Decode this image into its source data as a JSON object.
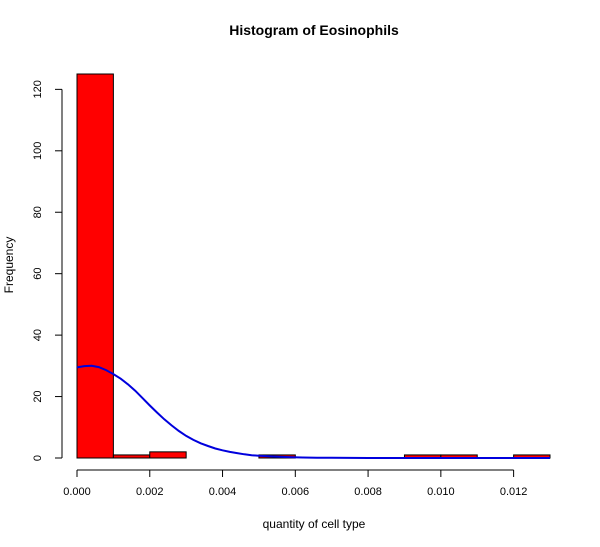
{
  "chart_data": {
    "type": "bar",
    "title": "Histogram of Eosinophils",
    "xlabel": "quantity of cell type",
    "ylabel": "Frequency",
    "xlim": [
      0,
      0.013
    ],
    "ylim": [
      0,
      125
    ],
    "bin_edges": [
      0.0,
      0.001,
      0.002,
      0.003,
      0.004,
      0.005,
      0.006,
      0.007,
      0.008,
      0.009,
      0.01,
      0.011,
      0.012,
      0.013
    ],
    "values": [
      125,
      1,
      2,
      0,
      0,
      1,
      0,
      0,
      0,
      1,
      1,
      0,
      1
    ],
    "x_ticks": [
      0.0,
      0.002,
      0.004,
      0.006,
      0.008,
      0.01,
      0.012
    ],
    "x_tick_labels": [
      "0.000",
      "0.002",
      "0.004",
      "0.006",
      "0.008",
      "0.010",
      "0.012"
    ],
    "y_ticks": [
      0,
      20,
      40,
      60,
      80,
      100,
      120
    ],
    "y_tick_labels": [
      "0",
      "20",
      "40",
      "60",
      "80",
      "100",
      "120"
    ],
    "density_curve": {
      "x": [
        0.0,
        0.0002,
        0.0004,
        0.0006,
        0.0008,
        0.001,
        0.0012,
        0.0014,
        0.0016,
        0.0018,
        0.002,
        0.0022,
        0.0024,
        0.0026,
        0.0028,
        0.003,
        0.0032,
        0.0034,
        0.0036,
        0.0038,
        0.004,
        0.0042,
        0.0044,
        0.0046,
        0.0048,
        0.005,
        0.0054,
        0.0058,
        0.0062,
        0.0066,
        0.007,
        0.008,
        0.009,
        0.01,
        0.011,
        0.012,
        0.013
      ],
      "y": [
        29.5,
        29.9,
        30.0,
        29.6,
        28.6,
        27.3,
        25.8,
        24.0,
        21.9,
        19.5,
        17.1,
        14.8,
        12.6,
        10.6,
        8.8,
        7.2,
        5.9,
        4.8,
        3.9,
        3.1,
        2.5,
        2.0,
        1.6,
        1.2,
        0.9,
        0.7,
        0.5,
        0.3,
        0.15,
        0.1,
        0.05,
        0.0,
        0.0,
        0.0,
        0.0,
        0.0,
        0.0
      ]
    },
    "colors": {
      "bar_fill": "#ff0000",
      "curve": "#0000dd"
    },
    "grid": false,
    "legend": "none"
  }
}
